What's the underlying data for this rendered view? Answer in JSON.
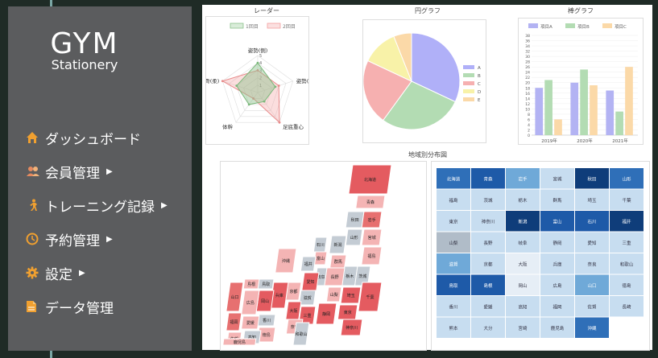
{
  "logo": {
    "title": "GYM",
    "subtitle": "Stationery"
  },
  "colors": {
    "sidebar": "#5b5c5e",
    "accent": "#f0a030",
    "radar1": "#8cc28c",
    "radar2": "#f3a0a0"
  },
  "menu": [
    {
      "label": "ダッシュボード",
      "icon": "house-icon",
      "color": "#f0a030",
      "caret": false
    },
    {
      "label": "会員管理",
      "icon": "users-icon",
      "color": "#e58a5f",
      "caret": true
    },
    {
      "label": "トレーニング記録",
      "icon": "runner-icon",
      "color": "#f0a030",
      "caret": true
    },
    {
      "label": "予約管理",
      "icon": "clock-icon",
      "color": "#f0a030",
      "caret": true
    },
    {
      "label": "設定",
      "icon": "gear-icon",
      "color": "#f0a030",
      "caret": true
    },
    {
      "label": "データ管理",
      "icon": "file-icon",
      "color": "#f0a030",
      "caret": false
    }
  ],
  "radar": {
    "title": "レーダー",
    "legend": [
      "1回目",
      "2回目"
    ],
    "axes": [
      "姿勢(側)",
      "姿勢(左右)",
      "足底重心",
      "体幹",
      "背骨(柔)"
    ],
    "ticks": [
      "1",
      "2",
      "3",
      "4",
      "5"
    ],
    "s1": [
      4,
      2.5,
      1.5,
      2,
      3
    ],
    "s2": [
      3,
      3,
      5,
      1,
      5
    ]
  },
  "pie": {
    "title": "円グラフ",
    "labels": [
      "A",
      "B",
      "C",
      "D",
      "E"
    ],
    "values": [
      32,
      28,
      22,
      12,
      6
    ],
    "colors": [
      "#b0b0f8",
      "#b3dcb3",
      "#f6b0b0",
      "#f8f2a8",
      "#fbd9a8"
    ]
  },
  "bar": {
    "title": "棒グラフ",
    "legend": [
      "項目A",
      "項目B",
      "項目C"
    ],
    "categories": [
      "2019年",
      "2020年",
      "2021年"
    ],
    "series": [
      [
        18,
        20,
        17
      ],
      [
        21,
        25,
        9
      ],
      [
        6,
        19,
        26
      ]
    ],
    "colors": [
      "#b3b3f3",
      "#b3dcb3",
      "#fbd9a8"
    ],
    "yticks": [
      "0",
      "2",
      "4",
      "6",
      "8",
      "10",
      "12",
      "14",
      "16",
      "18",
      "20",
      "22",
      "24",
      "26",
      "28",
      "30",
      "32",
      "34",
      "36",
      "38"
    ]
  },
  "region": {
    "title": "地域別分布図"
  },
  "mapPrefs": [
    {
      "l": "北海道",
      "c": "#e45b60"
    },
    {
      "l": "青森",
      "c": "#f4b4b4"
    },
    {
      "l": "秋田",
      "c": "#c4ccd4"
    },
    {
      "l": "岩手",
      "c": "#e77070"
    },
    {
      "l": "山形",
      "c": "#c4ccd4"
    },
    {
      "l": "宮城",
      "c": "#f4b4b4"
    },
    {
      "l": "新潟",
      "c": "#c4ccd4"
    },
    {
      "l": "福島",
      "c": "#f4b4b4"
    },
    {
      "l": "沖縄",
      "c": "#f4b4b4"
    },
    {
      "l": "石川",
      "c": "#c4ccd4"
    },
    {
      "l": "富山",
      "c": "#f4b4b4"
    },
    {
      "l": "福井",
      "c": "#c4ccd4"
    },
    {
      "l": "群馬",
      "c": "#f4b4b4"
    },
    {
      "l": "栃木",
      "c": "#c4ccd4"
    },
    {
      "l": "茨城",
      "c": "#c4ccd4"
    },
    {
      "l": "長野",
      "c": "#f4b4b4"
    },
    {
      "l": "埼玉",
      "c": "#e45b60"
    },
    {
      "l": "千葉",
      "c": "#e45b60"
    },
    {
      "l": "東京",
      "c": "#e45b60"
    },
    {
      "l": "神奈川",
      "c": "#e45b60"
    },
    {
      "l": "山梨",
      "c": "#f4b4b4"
    },
    {
      "l": "静岡",
      "c": "#e45b60"
    },
    {
      "l": "岐阜",
      "c": "#c4ccd4"
    },
    {
      "l": "愛知",
      "c": "#e45b60"
    },
    {
      "l": "滋賀",
      "c": "#c4ccd4"
    },
    {
      "l": "京都",
      "c": "#f4b4b4"
    },
    {
      "l": "三重",
      "c": "#e45b60"
    },
    {
      "l": "兵庫",
      "c": "#e45b60"
    },
    {
      "l": "大阪",
      "c": "#e45b60"
    },
    {
      "l": "奈良",
      "c": "#f4b4b4"
    },
    {
      "l": "和歌山",
      "c": "#c4ccd4"
    },
    {
      "l": "鳥取",
      "c": "#c4ccd4"
    },
    {
      "l": "島根",
      "c": "#f4b4b4"
    },
    {
      "l": "岡山",
      "c": "#e45b60"
    },
    {
      "l": "広島",
      "c": "#f4b4b4"
    },
    {
      "l": "山口",
      "c": "#e77070"
    },
    {
      "l": "香川",
      "c": "#c4ccd4"
    },
    {
      "l": "徳島",
      "c": "#f4b4b4"
    },
    {
      "l": "愛媛",
      "c": "#f4b4b4"
    },
    {
      "l": "高知",
      "c": "#c4ccd4"
    },
    {
      "l": "福岡",
      "c": "#e77070"
    },
    {
      "l": "佐賀",
      "c": "#f4b4b4"
    },
    {
      "l": "長崎",
      "c": "#f4b4b4"
    },
    {
      "l": "大分",
      "c": "#c4ccd4"
    },
    {
      "l": "熊本",
      "c": "#f4b4b4"
    },
    {
      "l": "宮崎",
      "c": "#f4b4b4"
    },
    {
      "l": "鹿児島",
      "c": "#f4b4b4"
    }
  ],
  "grid": [
    [
      {
        "l": "北海道",
        "c": "#2f6fb8"
      },
      {
        "l": "青森",
        "c": "#1e5aa8"
      },
      {
        "l": "岩手",
        "c": "#6fa9d8"
      },
      {
        "l": "宮城",
        "c": "#c7ddf0"
      },
      {
        "l": "秋田",
        "c": "#0f3d7a"
      },
      {
        "l": "山形",
        "c": "#2f6fb8"
      }
    ],
    [
      {
        "l": "福島",
        "c": "#c7ddf0"
      },
      {
        "l": "茨城",
        "c": "#c7ddf0"
      },
      {
        "l": "栃木",
        "c": "#c7ddf0"
      },
      {
        "l": "群馬",
        "c": "#c7ddf0"
      },
      {
        "l": "埼玉",
        "c": "#c7ddf0"
      },
      {
        "l": "千葉",
        "c": "#c7ddf0"
      }
    ],
    [
      {
        "l": "東京",
        "c": "#c7ddf0"
      },
      {
        "l": "神奈川",
        "c": "#c7ddf0"
      },
      {
        "l": "新潟",
        "c": "#0f3d7a"
      },
      {
        "l": "富山",
        "c": "#1e5aa8"
      },
      {
        "l": "石川",
        "c": "#1e5aa8"
      },
      {
        "l": "福井",
        "c": "#0f3d7a"
      }
    ],
    [
      {
        "l": "山梨",
        "c": "#b0bcc8"
      },
      {
        "l": "長野",
        "c": "#c7ddf0"
      },
      {
        "l": "岐阜",
        "c": "#c7ddf0"
      },
      {
        "l": "静岡",
        "c": "#c7ddf0"
      },
      {
        "l": "愛知",
        "c": "#c7ddf0"
      },
      {
        "l": "三重",
        "c": "#c7ddf0"
      }
    ],
    [
      {
        "l": "滋賀",
        "c": "#6fa9d8"
      },
      {
        "l": "京都",
        "c": "#c7ddf0"
      },
      {
        "l": "大阪",
        "c": "#e6eef6"
      },
      {
        "l": "兵庫",
        "c": "#c7ddf0"
      },
      {
        "l": "奈良",
        "c": "#c7ddf0"
      },
      {
        "l": "和歌山",
        "c": "#c7ddf0"
      }
    ],
    [
      {
        "l": "鳥取",
        "c": "#1e5aa8"
      },
      {
        "l": "島根",
        "c": "#1e5aa8"
      },
      {
        "l": "岡山",
        "c": "#e6eef6"
      },
      {
        "l": "広島",
        "c": "#c7ddf0"
      },
      {
        "l": "山口",
        "c": "#6fa9d8"
      },
      {
        "l": "徳島",
        "c": "#c7ddf0"
      }
    ],
    [
      {
        "l": "香川",
        "c": "#c7ddf0"
      },
      {
        "l": "愛媛",
        "c": "#c7ddf0"
      },
      {
        "l": "高知",
        "c": "#c7ddf0"
      },
      {
        "l": "福岡",
        "c": "#c7ddf0"
      },
      {
        "l": "佐賀",
        "c": "#c7ddf0"
      },
      {
        "l": "長崎",
        "c": "#c7ddf0"
      }
    ],
    [
      {
        "l": "熊本",
        "c": "#c7ddf0"
      },
      {
        "l": "大分",
        "c": "#c7ddf0"
      },
      {
        "l": "宮崎",
        "c": "#c7ddf0"
      },
      {
        "l": "鹿児島",
        "c": "#c7ddf0"
      },
      {
        "l": "沖縄",
        "c": "#2f6fb8"
      }
    ]
  ]
}
